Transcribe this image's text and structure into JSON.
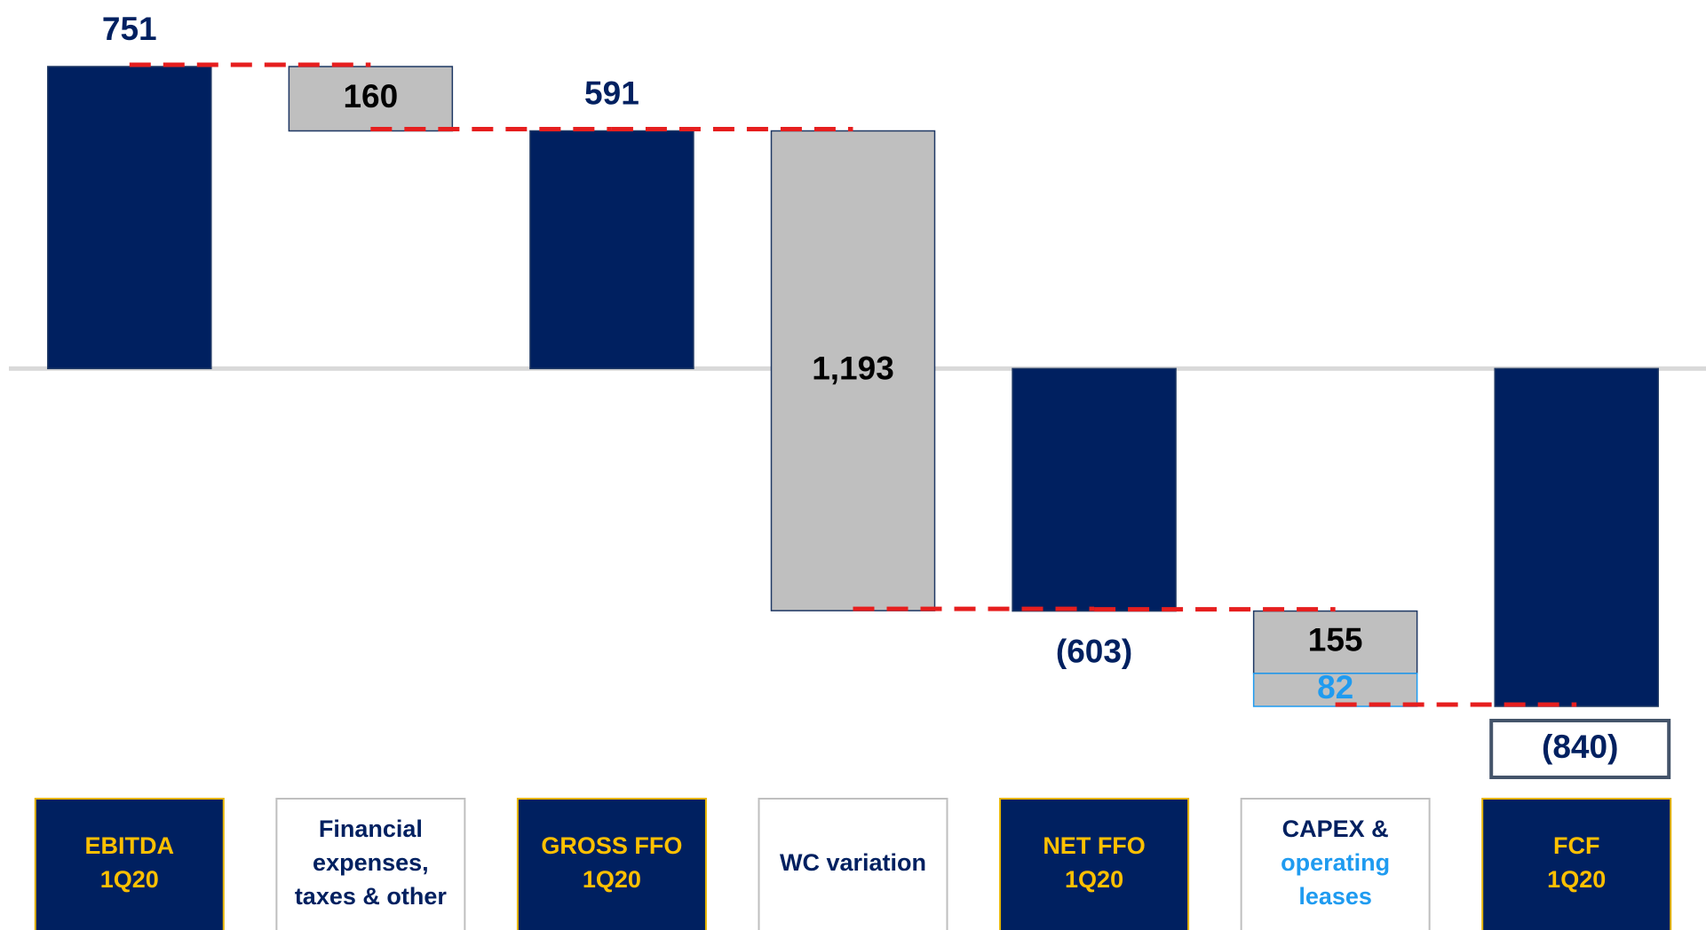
{
  "chart_data": {
    "type": "waterfall",
    "categories": [
      [
        "EBITDA",
        "1Q20"
      ],
      [
        "Financial",
        "expenses,",
        "taxes & other"
      ],
      [
        "GROSS FFO",
        "1Q20"
      ],
      [
        "WC variation"
      ],
      [
        "NET FFO",
        "1Q20"
      ],
      [
        "CAPEX &",
        "operating",
        "leases"
      ],
      [
        "FCF",
        "1Q20"
      ]
    ],
    "segments": [
      [
        751
      ],
      [
        -160
      ],
      [
        591
      ],
      [
        -1193
      ],
      [
        -603
      ],
      [
        -155,
        -82
      ],
      [
        -840
      ]
    ],
    "value_labels": [
      [
        "751"
      ],
      [
        "160"
      ],
      [
        "591"
      ],
      [
        "1,193"
      ],
      [
        "(603)"
      ],
      [
        "155",
        "82"
      ],
      [
        "(840)"
      ]
    ],
    "colors": [
      [
        "#002060"
      ],
      [
        "#bfbfbf"
      ],
      [
        "#002060"
      ],
      [
        "#bfbfbf"
      ],
      [
        "#002060"
      ],
      [
        "#bfbfbf",
        "#bfbfbf"
      ],
      [
        "#002060"
      ]
    ],
    "label_colors": [
      [
        "#002060"
      ],
      [
        "#000000"
      ],
      [
        "#002060"
      ],
      [
        "#000000"
      ],
      [
        "#002060"
      ],
      [
        "#000000",
        "#1f9bf0"
      ],
      [
        "#002060"
      ]
    ],
    "connector_color": "#e61e1e"
  }
}
